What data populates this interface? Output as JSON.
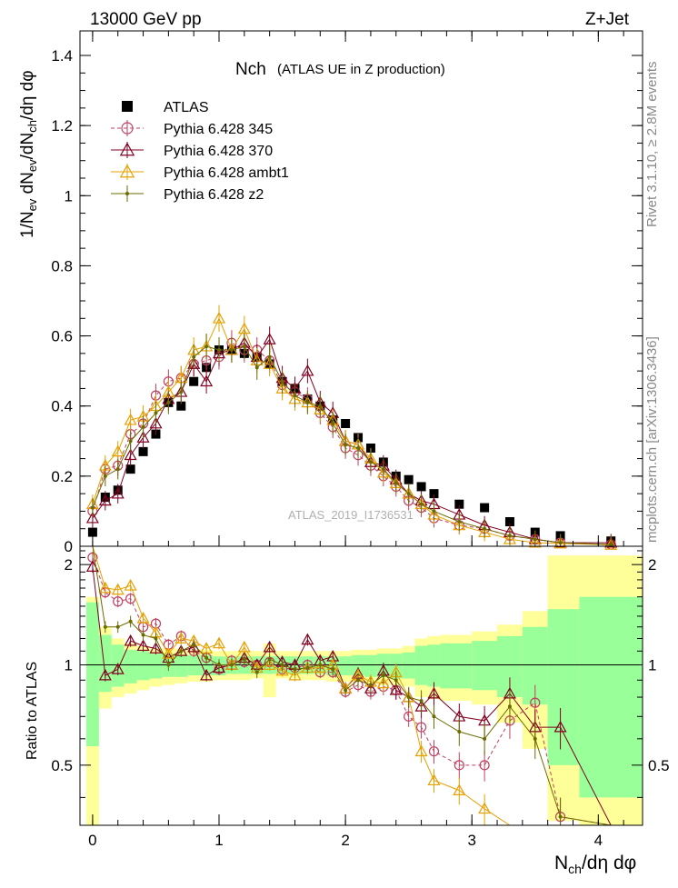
{
  "header": {
    "left": "13000 GeV pp",
    "right": "Z+Jet"
  },
  "side_labels": {
    "rivet": "Rivet 3.1.10, ≥ 2.8M events",
    "mcplots": "mcplots.cern.ch [arXiv:1306.3436]"
  },
  "watermark": "ATLAS_2019_I1736531",
  "colors": {
    "atlas": "#000000",
    "p345": "#c04060",
    "p370": "#800020",
    "ambt1": "#e6a000",
    "z2": "#6b6b00",
    "band_inner": "#99ff99",
    "band_outer": "#ffff99"
  },
  "chart_data": [
    {
      "type": "scatter",
      "title": "Nch",
      "subtitle": "(ATLAS UE in Z production)",
      "ylabel": "1/N_ev dN_ev/dN_ch/dη dφ",
      "xlabel": "N_ch/dη dφ",
      "xlim": [
        -0.1,
        4.35
      ],
      "ylim": [
        0,
        1.47
      ],
      "yticks": [
        "0",
        "0.2",
        "0.4",
        "0.6",
        "0.8",
        "1",
        "1.2",
        "1.4"
      ],
      "legend_position": "top-left",
      "x": [
        0.0,
        0.1,
        0.2,
        0.3,
        0.4,
        0.5,
        0.6,
        0.7,
        0.8,
        0.9,
        1.0,
        1.1,
        1.2,
        1.3,
        1.4,
        1.5,
        1.6,
        1.7,
        1.8,
        1.9,
        2.0,
        2.1,
        2.2,
        2.3,
        2.4,
        2.5,
        2.6,
        2.7,
        2.9,
        3.1,
        3.3,
        3.5,
        3.7,
        4.1
      ],
      "series": [
        {
          "name": "ATLAS",
          "marker": "square",
          "values": [
            0.04,
            0.14,
            0.16,
            0.22,
            0.27,
            0.32,
            0.41,
            0.4,
            0.47,
            0.51,
            0.56,
            0.56,
            0.55,
            0.54,
            0.52,
            0.47,
            0.45,
            0.42,
            0.4,
            0.36,
            0.35,
            0.31,
            0.28,
            0.24,
            0.2,
            0.19,
            0.17,
            0.15,
            0.12,
            0.11,
            0.07,
            0.04,
            0.03,
            0.015
          ]
        },
        {
          "name": "Pythia 6.428 345",
          "marker": "circle",
          "values": [
            0.1,
            0.22,
            0.23,
            0.32,
            0.35,
            0.43,
            0.47,
            0.48,
            0.52,
            0.53,
            0.54,
            0.58,
            0.56,
            0.56,
            0.53,
            0.46,
            0.44,
            0.42,
            0.38,
            0.34,
            0.28,
            0.26,
            0.23,
            0.2,
            0.17,
            0.13,
            0.11,
            0.08,
            0.06,
            0.05,
            0.03,
            0.02,
            0.01,
            0.005
          ]
        },
        {
          "name": "Pythia 6.428 370",
          "marker": "triangle",
          "values": [
            0.08,
            0.13,
            0.15,
            0.26,
            0.31,
            0.35,
            0.42,
            0.44,
            0.52,
            0.47,
            0.55,
            0.56,
            0.58,
            0.54,
            0.59,
            0.48,
            0.45,
            0.5,
            0.41,
            0.38,
            0.3,
            0.29,
            0.24,
            0.23,
            0.19,
            0.15,
            0.13,
            0.12,
            0.09,
            0.06,
            0.04,
            0.02,
            0.01,
            0.01
          ]
        },
        {
          "name": "Pythia 6.428 ambt1",
          "marker": "triangle",
          "values": [
            0.12,
            0.23,
            0.27,
            0.36,
            0.37,
            0.4,
            0.44,
            0.48,
            0.56,
            0.57,
            0.65,
            0.56,
            0.62,
            0.53,
            0.52,
            0.45,
            0.42,
            0.41,
            0.39,
            0.36,
            0.3,
            0.29,
            0.25,
            0.21,
            0.18,
            0.15,
            0.12,
            0.09,
            0.06,
            0.04,
            0.02,
            0.01,
            0.008,
            0.004
          ]
        },
        {
          "name": "Pythia 6.428 z2",
          "marker": "dot",
          "values": [
            0.11,
            0.2,
            0.22,
            0.3,
            0.34,
            0.38,
            0.41,
            0.44,
            0.54,
            0.57,
            0.56,
            0.56,
            0.57,
            0.51,
            0.54,
            0.47,
            0.43,
            0.41,
            0.4,
            0.35,
            0.29,
            0.28,
            0.24,
            0.22,
            0.18,
            0.15,
            0.12,
            0.1,
            0.07,
            0.05,
            0.03,
            0.02,
            0.01,
            0.005
          ]
        }
      ]
    },
    {
      "type": "line",
      "ylabel": "Ratio to ATLAS",
      "xlabel": "N_ch/dη dφ",
      "xlim": [
        -0.1,
        4.35
      ],
      "ylim": [
        0.33,
        2.27
      ],
      "yticks": [
        "0.5",
        "1",
        "2"
      ],
      "xticks": [
        "0",
        "1",
        "2",
        "3",
        "4"
      ],
      "bands": {
        "edges": [
          -0.05,
          0.05,
          0.15,
          0.25,
          0.35,
          0.45,
          0.55,
          0.65,
          0.75,
          0.85,
          0.95,
          1.05,
          1.15,
          1.25,
          1.35,
          1.45,
          1.55,
          1.65,
          1.75,
          1.85,
          1.95,
          2.05,
          2.15,
          2.25,
          2.35,
          2.45,
          2.55,
          2.65,
          2.75,
          3.0,
          3.2,
          3.4,
          3.6,
          3.85,
          4.35
        ],
        "inner_lo": [
          0.57,
          0.83,
          0.86,
          0.88,
          0.9,
          0.91,
          0.92,
          0.92,
          0.93,
          0.93,
          0.93,
          0.94,
          0.94,
          0.94,
          0.94,
          0.94,
          0.94,
          0.94,
          0.94,
          0.93,
          0.93,
          0.93,
          0.92,
          0.92,
          0.91,
          0.91,
          0.87,
          0.86,
          0.85,
          0.84,
          0.8,
          0.76,
          0.5,
          0.4,
          0.78
        ],
        "inner_hi": [
          1.54,
          1.23,
          1.15,
          1.11,
          1.1,
          1.08,
          1.08,
          1.07,
          1.07,
          1.07,
          1.06,
          1.06,
          1.06,
          1.06,
          1.06,
          1.06,
          1.06,
          1.06,
          1.06,
          1.06,
          1.06,
          1.07,
          1.07,
          1.08,
          1.08,
          1.09,
          1.14,
          1.15,
          1.16,
          1.18,
          1.22,
          1.3,
          1.47,
          1.6,
          1.3
        ],
        "outer_lo": [
          0.33,
          0.74,
          0.8,
          0.82,
          0.84,
          0.86,
          0.87,
          0.88,
          0.89,
          0.89,
          0.9,
          0.9,
          0.9,
          0.91,
          0.8,
          0.91,
          0.91,
          0.9,
          0.9,
          0.89,
          0.89,
          0.89,
          0.88,
          0.87,
          0.87,
          0.86,
          0.8,
          0.79,
          0.78,
          0.76,
          0.67,
          0.56,
          0.34,
          0.33,
          0.58
        ],
        "outer_hi": [
          1.6,
          1.3,
          1.2,
          1.16,
          1.14,
          1.12,
          1.12,
          1.12,
          1.11,
          1.11,
          1.1,
          1.1,
          1.1,
          1.1,
          1.16,
          1.1,
          1.1,
          1.1,
          1.1,
          1.1,
          1.1,
          1.11,
          1.11,
          1.12,
          1.12,
          1.14,
          1.2,
          1.22,
          1.23,
          1.26,
          1.32,
          1.45,
          2.13,
          2.13,
          1.6
        ]
      },
      "x": [
        0.0,
        0.1,
        0.2,
        0.3,
        0.4,
        0.5,
        0.6,
        0.7,
        0.8,
        0.9,
        1.0,
        1.1,
        1.2,
        1.3,
        1.4,
        1.5,
        1.6,
        1.7,
        1.8,
        1.9,
        2.0,
        2.1,
        2.2,
        2.3,
        2.4,
        2.5,
        2.6,
        2.7,
        2.9,
        3.1,
        3.3,
        3.5,
        3.7,
        4.1
      ],
      "series": [
        {
          "name": "Pythia 6.428 345",
          "values": [
            2.1,
            1.65,
            1.55,
            1.58,
            1.3,
            1.33,
            1.15,
            1.22,
            1.1,
            1.05,
            0.97,
            1.03,
            1.02,
            1.0,
            1.02,
            0.97,
            0.98,
            1.0,
            0.95,
            0.95,
            0.83,
            0.87,
            0.83,
            0.86,
            0.84,
            0.7,
            0.65,
            0.55,
            0.5,
            0.5,
            0.68,
            0.77,
            0.35,
            0.33
          ]
        },
        {
          "name": "Pythia 6.428 370",
          "values": [
            1.97,
            0.93,
            0.97,
            1.18,
            1.14,
            1.12,
            1.05,
            1.1,
            1.13,
            0.93,
            0.98,
            1.0,
            1.05,
            1.0,
            1.13,
            1.02,
            1.0,
            1.19,
            1.03,
            1.06,
            0.85,
            0.94,
            0.85,
            0.96,
            0.84,
            0.8,
            0.75,
            0.82,
            0.7,
            0.68,
            0.82,
            0.65,
            0.65,
            0.33
          ]
        },
        {
          "name": "Pythia 6.428 ambt1",
          "values": [
            2.3,
            1.7,
            1.68,
            1.73,
            1.38,
            1.25,
            1.08,
            1.2,
            1.18,
            1.12,
            1.16,
            1.0,
            1.13,
            0.98,
            1.0,
            0.96,
            0.93,
            0.98,
            0.98,
            1.0,
            0.85,
            0.93,
            0.89,
            0.88,
            0.95,
            0.8,
            0.55,
            0.45,
            0.42,
            0.37,
            0.33,
            0.33,
            0.33,
            0.33
          ]
        },
        {
          "name": "Pythia 6.428 z2",
          "values": [
            2.4,
            1.3,
            1.3,
            1.35,
            1.23,
            1.2,
            1.0,
            1.1,
            1.15,
            1.05,
            1.0,
            1.0,
            1.04,
            0.95,
            1.04,
            1.0,
            0.97,
            0.98,
            1.0,
            0.97,
            0.84,
            0.9,
            0.87,
            0.93,
            0.9,
            0.8,
            0.78,
            0.7,
            0.63,
            0.6,
            0.75,
            0.6,
            0.35,
            0.33
          ]
        }
      ]
    }
  ]
}
